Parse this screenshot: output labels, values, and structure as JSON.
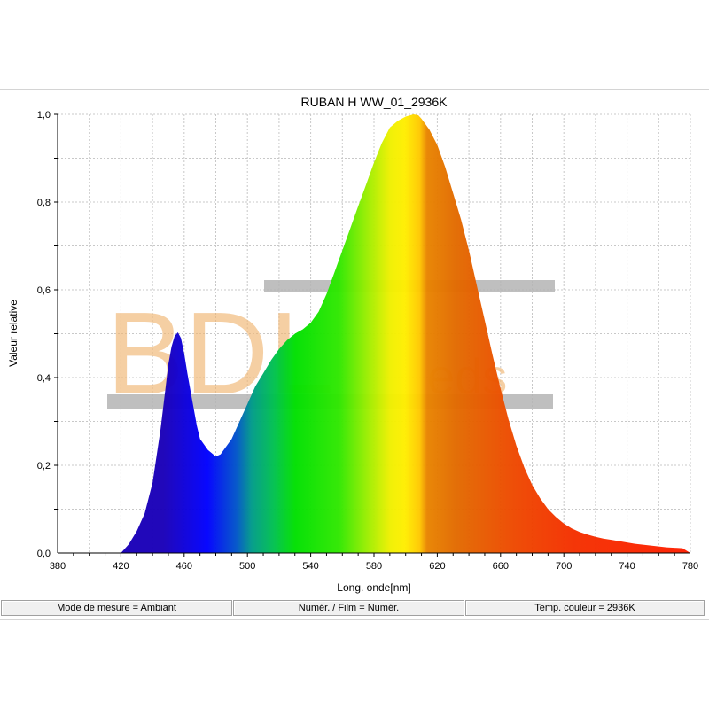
{
  "colors": {
    "plot_background": "#ffffff",
    "grid": "#c8c8c8",
    "axis": "#000000",
    "watermark_orange": "#f0b572",
    "watermark_bar": "#b4b4b4",
    "spectrum_stops": [
      {
        "nm": 420,
        "color": "#1a00b8"
      },
      {
        "nm": 450,
        "color": "#0000ff"
      },
      {
        "nm": 470,
        "color": "#0055c8"
      },
      {
        "nm": 480,
        "color": "#009a8a"
      },
      {
        "nm": 495,
        "color": "#00c050"
      },
      {
        "nm": 510,
        "color": "#00e000"
      },
      {
        "nm": 540,
        "color": "#30e800"
      },
      {
        "nm": 560,
        "color": "#a0ee00"
      },
      {
        "nm": 575,
        "color": "#f0f000"
      },
      {
        "nm": 585,
        "color": "#ffee00"
      },
      {
        "nm": 595,
        "color": "#ffc800"
      },
      {
        "nm": 600,
        "color": "#e88400"
      },
      {
        "nm": 620,
        "color": "#e26a00"
      },
      {
        "nm": 660,
        "color": "#ee4800"
      },
      {
        "nm": 700,
        "color": "#f43000"
      },
      {
        "nm": 780,
        "color": "#ff1e00"
      }
    ]
  },
  "watermark": {
    "brand_main": "BDL",
    "brand_suffix": "eds"
  },
  "chart_data": {
    "type": "area",
    "title": "RUBAN H WW_01_2936K",
    "xlabel": "Long. onde[nm]",
    "ylabel": "Valeur relative",
    "xlim": [
      380,
      780
    ],
    "ylim": [
      0,
      1
    ],
    "x_ticks": [
      380,
      420,
      460,
      500,
      540,
      580,
      620,
      660,
      700,
      740,
      780
    ],
    "x_tick_labels": [
      "380",
      "420",
      "460",
      "500",
      "540",
      "580",
      "620",
      "660",
      "700",
      "740",
      "780"
    ],
    "y_ticks": [
      0,
      0.2,
      0.4,
      0.6,
      0.8,
      1.0
    ],
    "y_tick_labels": [
      "0,0",
      "0,2",
      "0,4",
      "0,6",
      "0,8",
      "1,0"
    ],
    "grid": true,
    "series": [
      {
        "x": [
          410,
          420,
          425,
          430,
          435,
          440,
          445,
          448,
          450,
          452,
          454,
          456,
          458,
          460,
          462,
          465,
          468,
          470,
          475,
          480,
          483,
          486,
          490,
          495,
          500,
          505,
          510,
          515,
          520,
          525,
          530,
          535,
          540,
          545,
          550,
          555,
          560,
          565,
          570,
          575,
          580,
          585,
          590,
          595,
          600,
          605,
          608,
          610,
          615,
          620,
          625,
          630,
          635,
          640,
          645,
          650,
          655,
          660,
          665,
          670,
          675,
          680,
          685,
          690,
          695,
          700,
          705,
          710,
          715,
          720,
          725,
          730,
          735,
          740,
          745,
          750,
          755,
          760,
          765,
          770,
          775,
          780
        ],
        "y": [
          0.0,
          0.0,
          0.02,
          0.05,
          0.09,
          0.16,
          0.28,
          0.37,
          0.43,
          0.47,
          0.495,
          0.503,
          0.49,
          0.455,
          0.41,
          0.35,
          0.29,
          0.26,
          0.235,
          0.22,
          0.225,
          0.24,
          0.26,
          0.3,
          0.34,
          0.38,
          0.41,
          0.44,
          0.465,
          0.485,
          0.5,
          0.51,
          0.525,
          0.55,
          0.59,
          0.64,
          0.69,
          0.74,
          0.79,
          0.84,
          0.89,
          0.935,
          0.97,
          0.985,
          0.995,
          1.0,
          0.998,
          0.99,
          0.965,
          0.93,
          0.88,
          0.82,
          0.76,
          0.69,
          0.61,
          0.53,
          0.45,
          0.375,
          0.305,
          0.245,
          0.195,
          0.155,
          0.125,
          0.1,
          0.082,
          0.067,
          0.056,
          0.048,
          0.042,
          0.037,
          0.033,
          0.03,
          0.027,
          0.024,
          0.021,
          0.019,
          0.017,
          0.015,
          0.013,
          0.012,
          0.011,
          0.0
        ]
      }
    ]
  },
  "status_bar": {
    "mode": "Mode de mesure = Ambiant",
    "film": "Numér. / Film = Numér.",
    "temperature": "Temp. couleur = 2936K"
  }
}
